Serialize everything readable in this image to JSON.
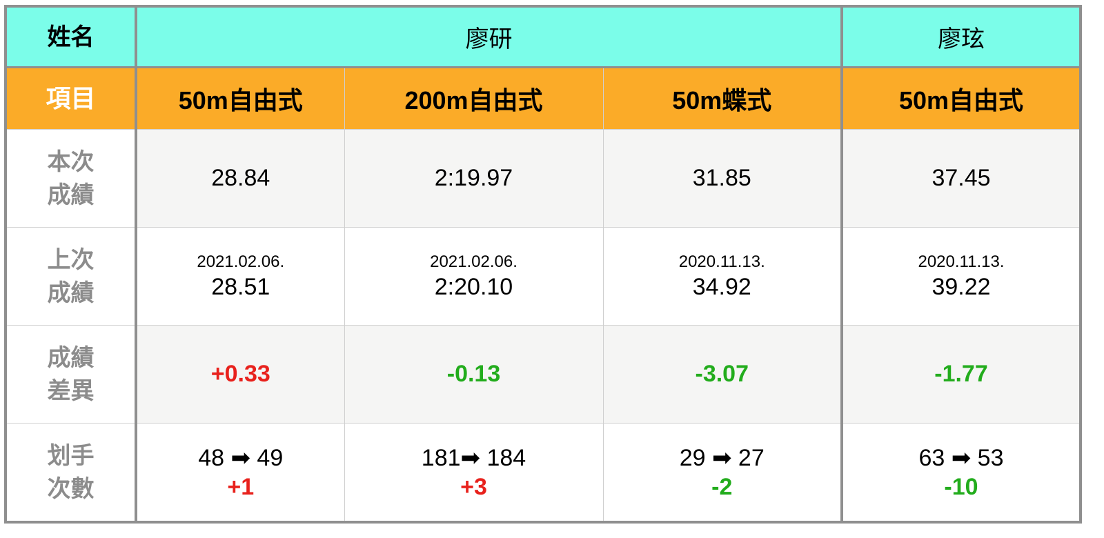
{
  "header": {
    "name_label": "姓名",
    "swimmers": [
      "廖研",
      "廖玹"
    ]
  },
  "events_row": {
    "label": "項目",
    "events": [
      "50m自由式",
      "200m自由式",
      "50m蝶式",
      "50m自由式"
    ]
  },
  "rows": {
    "current": {
      "label": [
        "本次",
        "成績"
      ],
      "values": [
        "28.84",
        "2:19.97",
        "31.85",
        "37.45"
      ]
    },
    "previous": {
      "label": [
        "上次",
        "成績"
      ],
      "dates": [
        "2021.02.06.",
        "2021.02.06.",
        "2020.11.13.",
        "2020.11.13."
      ],
      "values": [
        "28.51",
        "2:20.10",
        "34.92",
        "39.22"
      ]
    },
    "diff": {
      "label": [
        "成績",
        "差異"
      ],
      "values": [
        "+0.33",
        "-0.13",
        "-3.07",
        "-1.77"
      ],
      "signs": [
        "pos",
        "neg",
        "neg",
        "neg"
      ]
    },
    "strokes": {
      "label": [
        "划手",
        "次數"
      ],
      "transitions": [
        "48 ➡ 49",
        "181➡ 184",
        "29 ➡ 27",
        "63 ➡ 53"
      ],
      "changes": [
        "+1",
        "+3",
        "-2",
        "-10"
      ],
      "signs": [
        "pos",
        "pos",
        "neg",
        "neg"
      ]
    }
  },
  "colors": {
    "header_bg": "#7bfde9",
    "event_bg": "#fbab28",
    "positive": "#e8211c",
    "negative": "#22ac1c",
    "border": "#8f8f8f"
  }
}
